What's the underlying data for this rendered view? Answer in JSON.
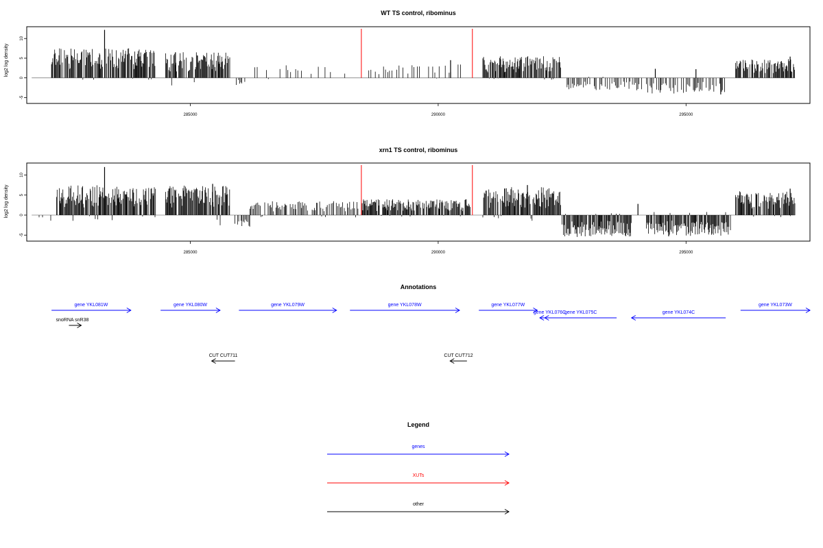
{
  "colors": {
    "gene": "#0000ff",
    "xut": "#ff0000",
    "other": "#000000",
    "data": "#000000",
    "marker": "#ff0000",
    "baseline": "#808080"
  },
  "chart_data": [
    {
      "type": "bar",
      "title": "WT TS control, ribominus",
      "ylabel": "log2 log density",
      "xlim": [
        281700,
        297500
      ],
      "ylim": [
        -6.5,
        13
      ],
      "xticks": [
        285000,
        290000,
        295000
      ],
      "xtick_labels": [
        "285000",
        "290000",
        "295000"
      ],
      "yticks": [
        -5,
        0,
        5,
        10
      ],
      "ytick_labels": [
        "-5",
        "0",
        "5",
        "10"
      ],
      "baseline": [
        281800,
        297200
      ],
      "marker_lines_x": [
        288450,
        290690
      ],
      "peaks": [
        {
          "x": 283270,
          "y": 12.2
        },
        {
          "x": 284700,
          "y": 6.5
        },
        {
          "x": 290250,
          "y": 4.5
        },
        {
          "x": 294380,
          "y": 2.3
        },
        {
          "x": 295200,
          "y": 2.2
        },
        {
          "x": 295700,
          "y": -4.2
        },
        {
          "x": 297100,
          "y": 5.4
        }
      ],
      "segments": [
        {
          "x": [
            282200,
            284300
          ],
          "lo": -1,
          "hi": 7.5,
          "gap": 12
        },
        {
          "x": [
            284500,
            285800
          ],
          "lo": -2.5,
          "hi": 6.5,
          "gap": 13
        },
        {
          "x": [
            285900,
            286100
          ],
          "lo": -1.8,
          "hi": 0,
          "gap": 20
        },
        {
          "x": [
            286300,
            288250
          ],
          "lo": -0.4,
          "hi": 3.2,
          "gap": 60
        },
        {
          "x": [
            288600,
            290550
          ],
          "lo": -0.3,
          "hi": 3.6,
          "gap": 35
        },
        {
          "x": [
            290900,
            292500
          ],
          "lo": -0.5,
          "hi": 5.5,
          "gap": 12
        },
        {
          "x": [
            292600,
            294200
          ],
          "lo": -3.2,
          "hi": 0.3,
          "gap": 30
        },
        {
          "x": [
            294200,
            295800
          ],
          "lo": -4.0,
          "hi": 0.8,
          "gap": 26
        },
        {
          "x": [
            296000,
            297200
          ],
          "lo": -0.2,
          "hi": 4.8,
          "gap": 12
        }
      ]
    },
    {
      "type": "bar",
      "title": "xrn1 TS control, ribominus",
      "ylabel": "log2 log density",
      "xlim": [
        281700,
        297500
      ],
      "ylim": [
        -6.5,
        13
      ],
      "xticks": [
        285000,
        290000,
        295000
      ],
      "xtick_labels": [
        "285000",
        "290000",
        "295000"
      ],
      "yticks": [
        -5,
        0,
        5,
        10
      ],
      "ytick_labels": [
        "-5",
        "0",
        "5",
        "10"
      ],
      "baseline": [
        281800,
        297200
      ],
      "marker_lines_x": [
        288450,
        290690
      ],
      "peaks": [
        {
          "x": 283270,
          "y": 12.0
        },
        {
          "x": 285450,
          "y": 7.8
        },
        {
          "x": 291800,
          "y": 7.5
        },
        {
          "x": 294030,
          "y": 2.8
        },
        {
          "x": 294650,
          "y": -5.3
        },
        {
          "x": 297100,
          "y": 6.6
        }
      ],
      "segments": [
        {
          "x": [
            281900,
            282200
          ],
          "lo": -1.5,
          "hi": 1.5,
          "gap": 40
        },
        {
          "x": [
            282300,
            284300
          ],
          "lo": -1.8,
          "hi": 7.5,
          "gap": 9
        },
        {
          "x": [
            284500,
            285800
          ],
          "lo": -3.0,
          "hi": 7.5,
          "gap": 9
        },
        {
          "x": [
            285900,
            286200
          ],
          "lo": -3.0,
          "hi": 2.5,
          "gap": 20
        },
        {
          "x": [
            286200,
            288400
          ],
          "lo": -0.6,
          "hi": 3.5,
          "gap": 18
        },
        {
          "x": [
            288450,
            290650
          ],
          "lo": -0.5,
          "hi": 4.0,
          "gap": 15
        },
        {
          "x": [
            290900,
            292500
          ],
          "lo": -2.0,
          "hi": 7.0,
          "gap": 8
        },
        {
          "x": [
            292500,
            293900
          ],
          "lo": -5.5,
          "hi": 0.5,
          "gap": 10
        },
        {
          "x": [
            294200,
            295900
          ],
          "lo": -5.2,
          "hi": 1.0,
          "gap": 10
        },
        {
          "x": [
            296000,
            297200
          ],
          "lo": -0.5,
          "hi": 6.0,
          "gap": 10
        }
      ]
    }
  ],
  "annotations": {
    "title": "Annotations",
    "features": [
      {
        "label": "gene YKL081W",
        "type": "gene",
        "row": 0,
        "start": 282200,
        "end": 283800
      },
      {
        "label": "gene YKL080W",
        "type": "gene",
        "row": 0,
        "start": 284400,
        "end": 285600
      },
      {
        "label": "gene YKL079W",
        "type": "gene",
        "row": 0,
        "start": 285980,
        "end": 287950
      },
      {
        "label": "gene YKL078W",
        "type": "gene",
        "row": 0,
        "start": 288220,
        "end": 290430
      },
      {
        "label": "gene YKL077W",
        "type": "gene",
        "row": 0,
        "start": 290820,
        "end": 292000
      },
      {
        "label": "gene YKL073W",
        "type": "gene",
        "row": 0,
        "start": 296100,
        "end": 297500
      },
      {
        "label": "gene YKL076C",
        "type": "gene",
        "row": 1,
        "start": 292050,
        "end": 292450
      },
      {
        "label": "gene YKL075C",
        "type": "gene",
        "row": 1,
        "start": 292150,
        "end": 293600
      },
      {
        "label": "gene YKL074C",
        "type": "gene",
        "row": 1,
        "start": 293900,
        "end": 295800
      },
      {
        "label": "snoRNA snR38",
        "type": "other",
        "row": 2,
        "start": 282550,
        "end": 282800
      },
      {
        "label": "CUT CUT711",
        "type": "other",
        "row": 3,
        "start": 285430,
        "end": 285900
      },
      {
        "label": "CUT CUT712",
        "type": "other",
        "row": 3,
        "start": 290240,
        "end": 290580
      }
    ]
  },
  "legend": {
    "title": "Legend",
    "items": [
      {
        "label": "genes",
        "type": "gene"
      },
      {
        "label": "XUTs",
        "type": "xut"
      },
      {
        "label": "other",
        "type": "other"
      }
    ]
  }
}
